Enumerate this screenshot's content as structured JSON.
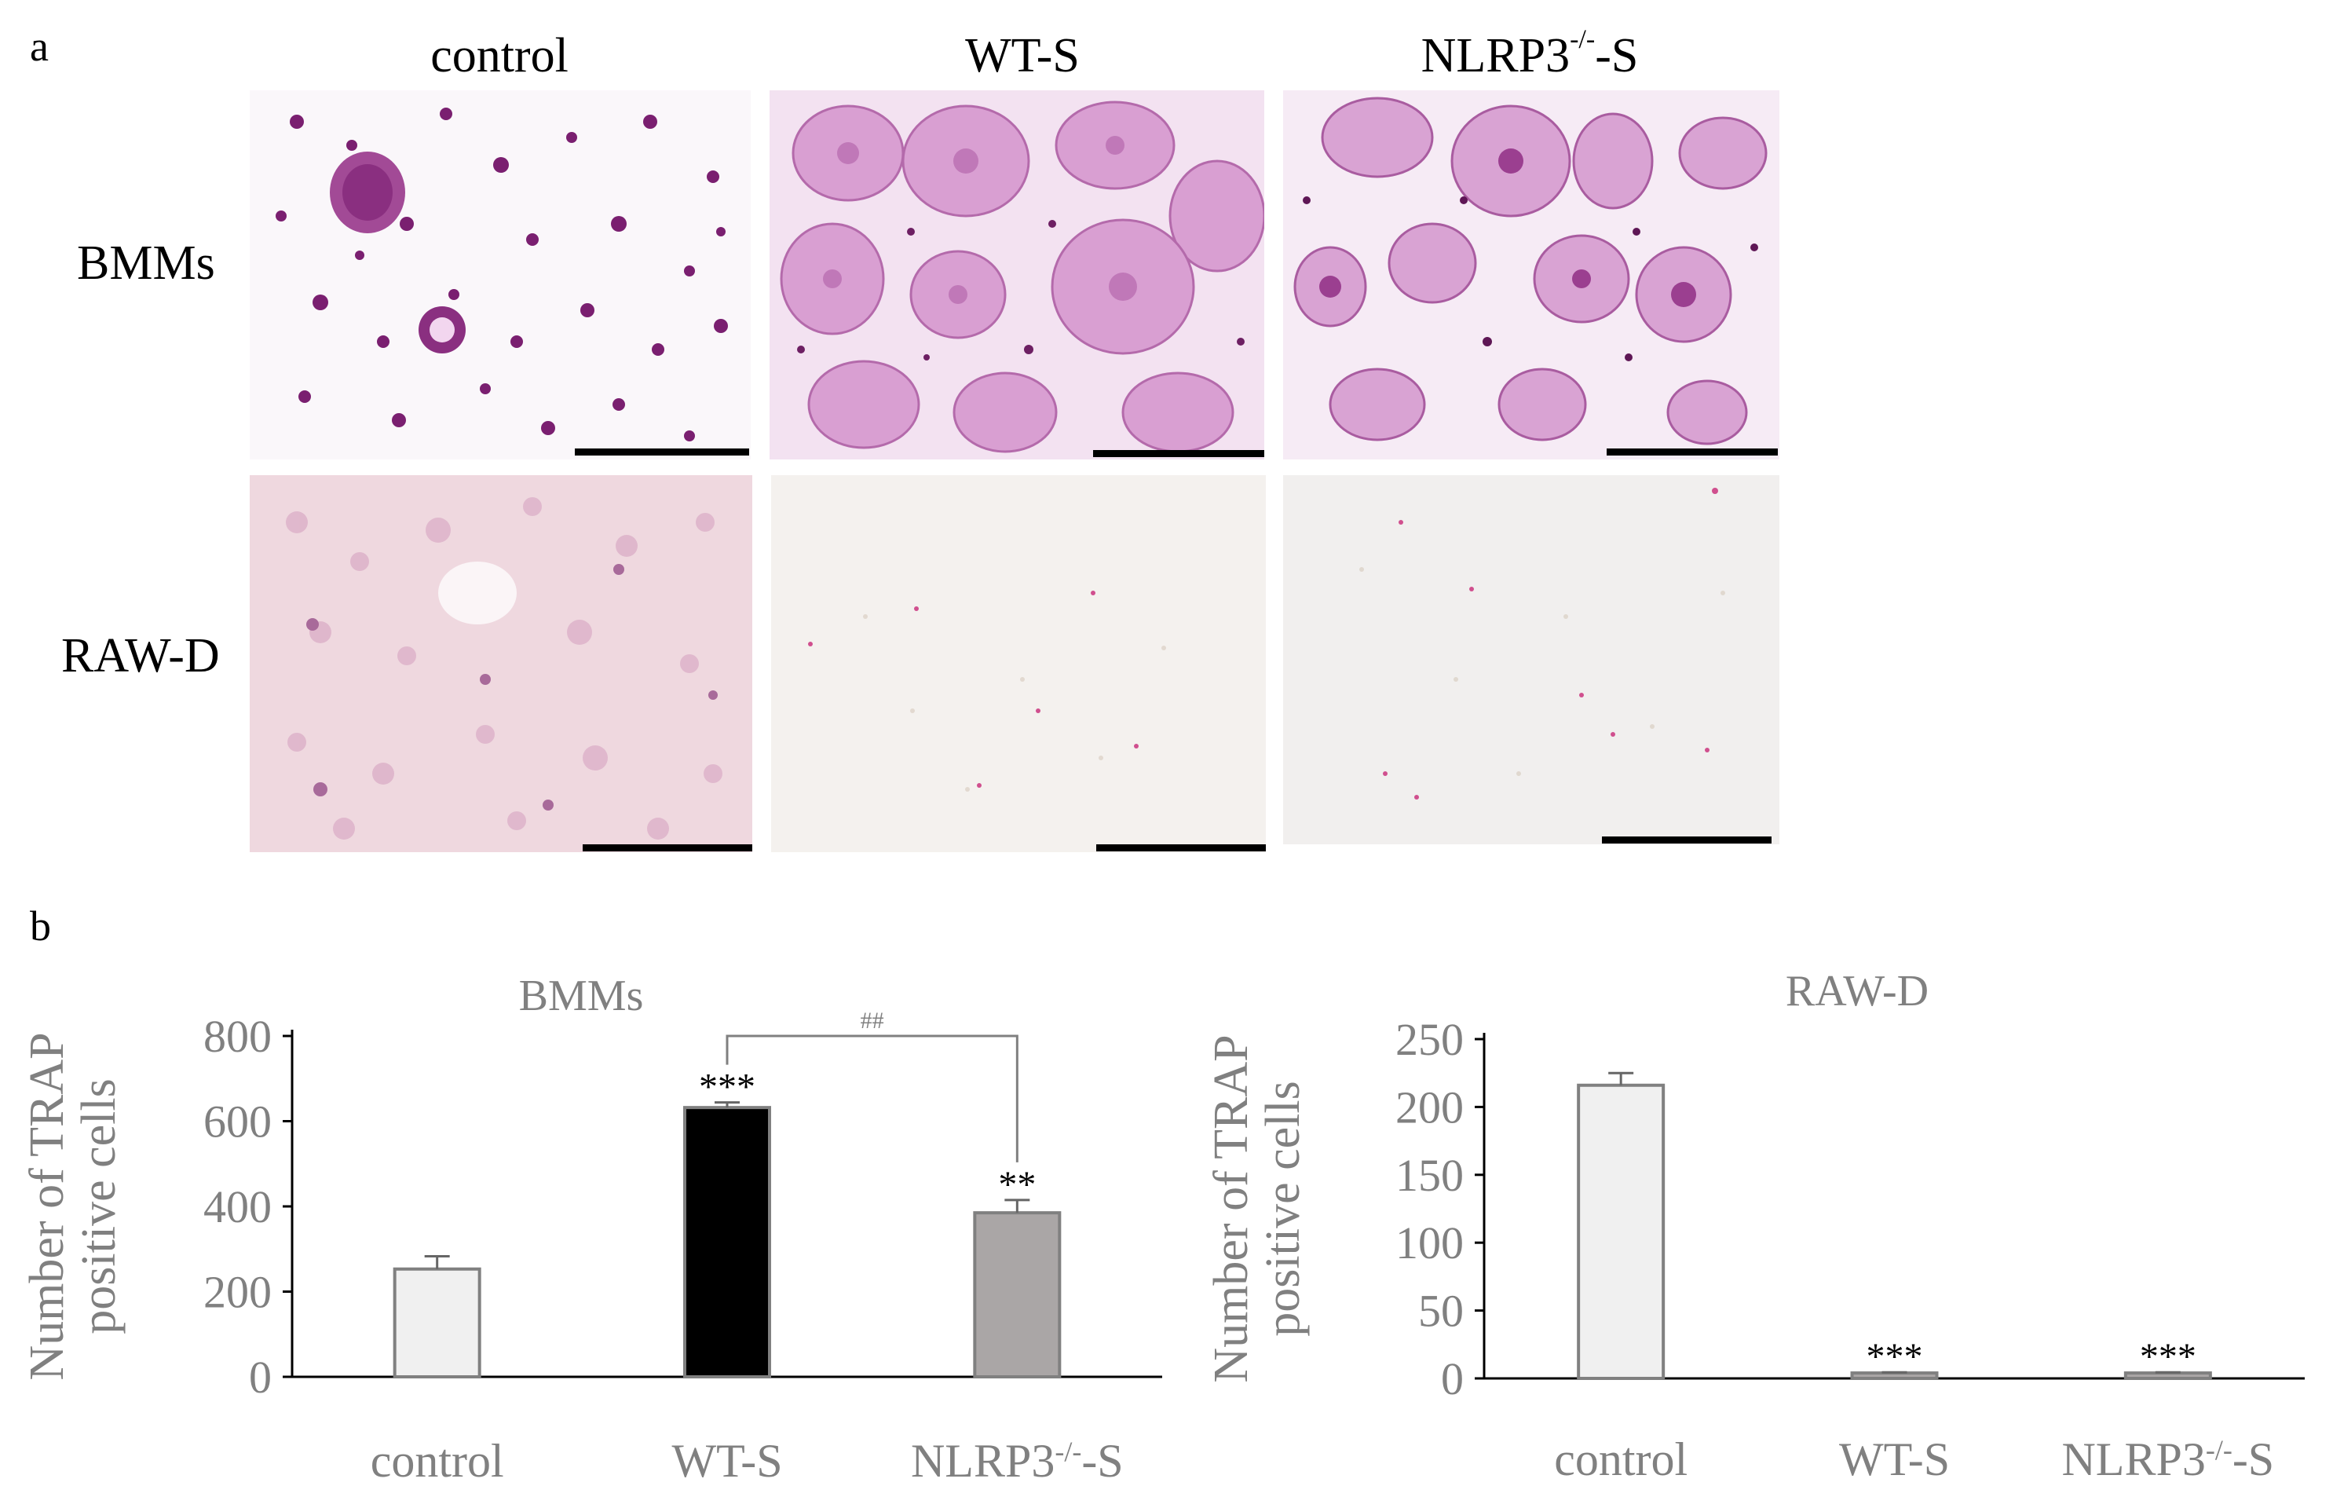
{
  "panel_a": {
    "letter": "a",
    "columns": [
      {
        "base": "control",
        "sup": "",
        "tail": ""
      },
      {
        "base": "WT-S",
        "sup": "",
        "tail": ""
      },
      {
        "base": "NLRP3",
        "sup": "-/-",
        "tail": "-S"
      }
    ],
    "rows": [
      "BMMs",
      "RAW-D"
    ]
  },
  "panel_b": {
    "letter": "b"
  },
  "chart_data": [
    {
      "type": "bar",
      "title": "BMMs",
      "ylabel_lines": [
        "Number of TRAP",
        "positive cells"
      ],
      "categories": [
        {
          "base": "control",
          "sup": "",
          "tail": ""
        },
        {
          "base": "WT-S",
          "sup": "",
          "tail": ""
        },
        {
          "base": "NLRP3",
          "sup": "-/-",
          "tail": "-S"
        }
      ],
      "values": [
        253,
        632,
        385
      ],
      "errors": [
        30,
        12,
        30
      ],
      "bar_colors": [
        "#f0f0f0",
        "#000000",
        "#aaa6a6"
      ],
      "significance": [
        "",
        "***",
        "**"
      ],
      "bracket": {
        "from": 1,
        "to": 2,
        "label": "##"
      },
      "ylim": [
        0,
        800
      ],
      "yticks": [
        0,
        200,
        400,
        600,
        800
      ]
    },
    {
      "type": "bar",
      "title": "RAW-D",
      "ylabel_lines": [
        "Number of TRAP",
        "positive cells"
      ],
      "categories": [
        {
          "base": "control",
          "sup": "",
          "tail": ""
        },
        {
          "base": "WT-S",
          "sup": "",
          "tail": ""
        },
        {
          "base": "NLRP3",
          "sup": "-/-",
          "tail": "-S"
        }
      ],
      "values": [
        216,
        4,
        4
      ],
      "errors": [
        9,
        0.5,
        0.5
      ],
      "bar_colors": [
        "#f0f0f0",
        "#aaa6a6",
        "#aaa6a6"
      ],
      "significance": [
        "",
        "***",
        "***"
      ],
      "ylim": [
        0,
        250
      ],
      "yticks": [
        0,
        50,
        100,
        150,
        200,
        250
      ]
    }
  ]
}
